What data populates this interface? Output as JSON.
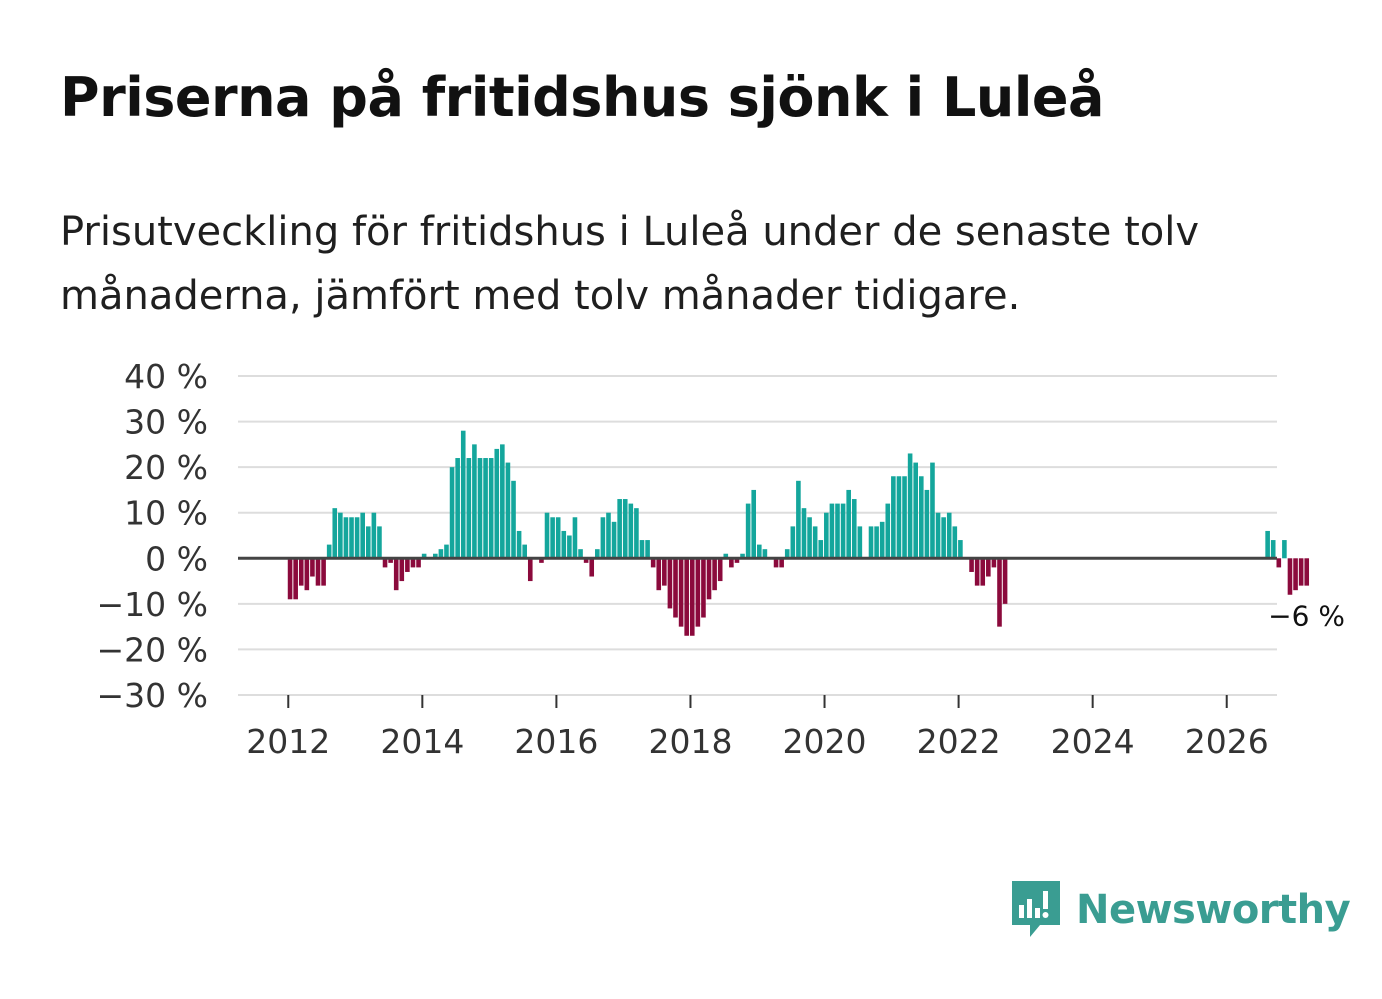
{
  "header": {
    "title": "Priserna på fritidshus sjönk i Luleå",
    "subtitle": "Prisutveckling för fritidshus i Luleå under de senaste tolv månaderna, jämfört med tolv månader tidigare."
  },
  "brand": {
    "name": "Newsworthy",
    "icon": "newsworthy-logo-icon",
    "color": "#3a9d92"
  },
  "colors": {
    "positive": "#14a69c",
    "negative": "#8b0a3c",
    "zero_line": "#444444",
    "grid": "#dddddd"
  },
  "chart_data": {
    "type": "bar",
    "title": "Priserna på fritidshus sjönk i Luleå",
    "xlabel": "",
    "ylabel": "",
    "unit": "%",
    "ylim": [
      -30,
      40
    ],
    "xlim": [
      2011.25,
      2026.75
    ],
    "y_ticks": [
      40,
      30,
      20,
      10,
      0,
      -10,
      -20,
      -30
    ],
    "y_tick_labels": [
      "40 %",
      "30 %",
      "20 %",
      "10 %",
      "0 %",
      "−10 %",
      "−20 %",
      "−30 %"
    ],
    "x_ticks": [
      2012,
      2014,
      2016,
      2018,
      2020,
      2022,
      2024,
      2026
    ],
    "x_tick_labels": [
      "2012",
      "2014",
      "2016",
      "2018",
      "2020",
      "2022",
      "2024",
      "2026"
    ],
    "start": [
      2012,
      1
    ],
    "values": [
      -9,
      -9,
      -6,
      -7,
      -4,
      -6,
      -6,
      3,
      11,
      10,
      9,
      9,
      9,
      10,
      7,
      10,
      7,
      -2,
      -1,
      -7,
      -5,
      -3,
      -2,
      -2,
      1,
      0,
      1,
      2,
      3,
      20,
      22,
      28,
      22,
      25,
      22,
      22,
      22,
      24,
      25,
      21,
      17,
      6,
      3,
      -5,
      0,
      -1,
      10,
      9,
      9,
      6,
      5,
      9,
      2,
      -1,
      -4,
      2,
      9,
      10,
      8,
      13,
      13,
      12,
      11,
      4,
      4,
      -2,
      -7,
      -6,
      -11,
      -13,
      -15,
      -17,
      -17,
      -15,
      -13,
      -9,
      -7,
      -5,
      1,
      -2,
      -1,
      1,
      12,
      15,
      3,
      2,
      0,
      -2,
      -2,
      2,
      7,
      17,
      11,
      9,
      7,
      4,
      10,
      12,
      12,
      12,
      15,
      13,
      7,
      0,
      7,
      7,
      8,
      12,
      18,
      18,
      18,
      23,
      21,
      18,
      15,
      21,
      10,
      9,
      10,
      7,
      4,
      0,
      -3,
      -6,
      -6,
      -4,
      -2,
      -15,
      -10,
      null,
      null,
      null,
      null,
      null,
      null,
      null,
      null,
      null,
      null,
      null,
      null,
      null,
      null,
      null,
      null,
      null,
      null,
      null,
      null,
      null,
      null,
      null,
      null,
      null,
      null,
      null,
      null,
      null,
      null,
      null,
      null,
      null,
      null,
      null,
      null,
      null,
      null,
      null,
      null,
      null,
      null,
      null,
      null,
      null,
      null,
      6,
      4,
      -2,
      4,
      -8,
      -7,
      -6,
      -6
    ],
    "last_value_label": "−6 %"
  }
}
